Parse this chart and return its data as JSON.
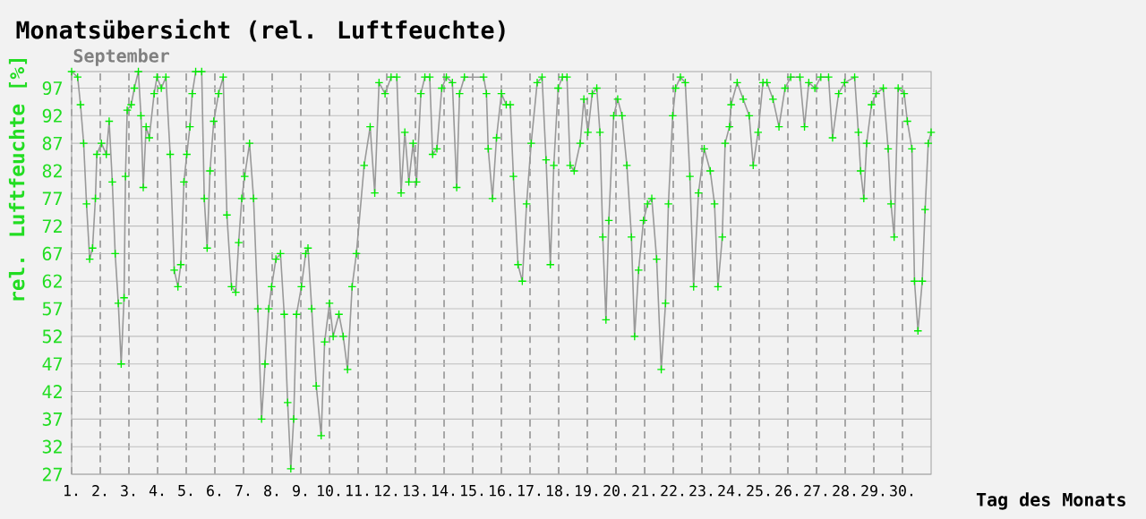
{
  "chart_data": {
    "type": "line",
    "title": "Monatsübersicht (rel. Luftfeuchte)",
    "subtitle": "September",
    "xlabel": "Tag des Monats",
    "ylabel": "rel. Luftfeuchte [%]",
    "xlim": [
      1,
      31
    ],
    "ylim": [
      27,
      100
    ],
    "xticks": [
      {
        "value": 1,
        "label": "1."
      },
      {
        "value": 2,
        "label": "2."
      },
      {
        "value": 3,
        "label": "3."
      },
      {
        "value": 4,
        "label": "4."
      },
      {
        "value": 5,
        "label": "5."
      },
      {
        "value": 6,
        "label": "6."
      },
      {
        "value": 7,
        "label": "7."
      },
      {
        "value": 8,
        "label": "8."
      },
      {
        "value": 9,
        "label": "9."
      },
      {
        "value": 10,
        "label": "10."
      },
      {
        "value": 11,
        "label": "11."
      },
      {
        "value": 12,
        "label": "12."
      },
      {
        "value": 13,
        "label": "13."
      },
      {
        "value": 14,
        "label": "14."
      },
      {
        "value": 15,
        "label": "15."
      },
      {
        "value": 16,
        "label": "16."
      },
      {
        "value": 17,
        "label": "17."
      },
      {
        "value": 18,
        "label": "18."
      },
      {
        "value": 19,
        "label": "19."
      },
      {
        "value": 20,
        "label": "20."
      },
      {
        "value": 21,
        "label": "21."
      },
      {
        "value": 22,
        "label": "22."
      },
      {
        "value": 23,
        "label": "23."
      },
      {
        "value": 24,
        "label": "24."
      },
      {
        "value": 25,
        "label": "25."
      },
      {
        "value": 26,
        "label": "26."
      },
      {
        "value": 27,
        "label": "27."
      },
      {
        "value": 28,
        "label": "28."
      },
      {
        "value": 29,
        "label": "29."
      },
      {
        "value": 30,
        "label": "30."
      }
    ],
    "yticks": [
      27,
      32,
      37,
      42,
      47,
      52,
      57,
      62,
      67,
      72,
      77,
      82,
      87,
      92,
      97
    ],
    "grid": true,
    "marker": "cross",
    "line_style": "solid",
    "series": [
      {
        "color": "#999999",
        "x": [
          1.0,
          1.21,
          1.31,
          1.42,
          1.52,
          1.63,
          1.73,
          1.83,
          1.88,
          2.04,
          2.21,
          2.31,
          2.42,
          2.52,
          2.63,
          2.73,
          2.83,
          2.88,
          2.94,
          3.08,
          3.19,
          3.33,
          3.42,
          3.5,
          3.6,
          3.71,
          3.88,
          3.98,
          4.13,
          4.29,
          4.44,
          4.58,
          4.71,
          4.81,
          4.92,
          5.02,
          5.13,
          5.21,
          5.33,
          5.54,
          5.63,
          5.73,
          5.83,
          5.96,
          6.13,
          6.29,
          6.42,
          6.58,
          6.73,
          6.83,
          6.94,
          7.04,
          7.21,
          7.35,
          7.5,
          7.63,
          7.75,
          7.88,
          7.98,
          8.13,
          8.29,
          8.42,
          8.54,
          8.65,
          8.75,
          8.85,
          9.02,
          9.17,
          9.25,
          9.38,
          9.54,
          9.71,
          9.83,
          10.0,
          10.13,
          10.33,
          10.48,
          10.63,
          10.79,
          10.94,
          11.21,
          11.42,
          11.58,
          11.73,
          11.94,
          12.15,
          12.35,
          12.5,
          12.63,
          12.77,
          12.92,
          13.04,
          13.19,
          13.33,
          13.5,
          13.6,
          13.75,
          13.92,
          14.08,
          14.29,
          14.44,
          14.54,
          14.71,
          15.38,
          15.48,
          15.54,
          15.69,
          15.83,
          16.0,
          16.17,
          16.31,
          16.42,
          16.58,
          16.73,
          16.88,
          17.04,
          17.25,
          17.42,
          17.56,
          17.71,
          17.83,
          17.98,
          18.13,
          18.29,
          18.4,
          18.54,
          18.75,
          18.88,
          19.02,
          19.17,
          19.33,
          19.44,
          19.54,
          19.65,
          19.75,
          19.92,
          20.06,
          20.21,
          20.38,
          20.54,
          20.65,
          20.79,
          20.96,
          21.1,
          21.25,
          21.42,
          21.58,
          21.73,
          21.83,
          21.98,
          22.08,
          22.25,
          22.42,
          22.58,
          22.71,
          22.88,
          23.08,
          23.29,
          23.44,
          23.56,
          23.71,
          23.81,
          23.96,
          24.02,
          24.23,
          24.44,
          24.65,
          24.79,
          24.96,
          25.13,
          25.27,
          25.48,
          25.69,
          25.9,
          26.1,
          26.42,
          26.58,
          26.73,
          26.94,
          27.15,
          27.42,
          27.56,
          27.77,
          27.98,
          28.33,
          28.46,
          28.54,
          28.65,
          28.75,
          28.92,
          29.08,
          29.33,
          29.5,
          29.6,
          29.71,
          29.85,
          30.06,
          30.17,
          30.33,
          30.42,
          30.54,
          30.69,
          30.79,
          30.9,
          31.0
        ],
        "values": [
          100,
          99,
          94,
          87,
          76,
          66,
          68,
          77,
          85,
          87,
          85,
          91,
          80,
          67,
          58,
          47,
          59,
          81,
          93,
          94,
          97,
          100,
          92,
          79,
          90,
          88,
          96,
          99,
          97,
          99,
          85,
          64,
          61,
          65,
          80,
          85,
          90,
          96,
          100,
          100,
          77,
          68,
          82,
          91,
          96,
          99,
          74,
          61,
          60,
          69,
          77,
          81,
          87,
          77,
          57,
          37,
          47,
          57,
          61,
          66,
          67,
          56,
          40,
          28,
          37,
          56,
          61,
          67,
          68,
          57,
          43,
          34,
          51,
          58,
          52,
          56,
          52,
          46,
          61,
          67,
          83,
          90,
          78,
          98,
          96,
          99,
          99,
          78,
          89,
          80,
          87,
          80,
          96,
          99,
          99,
          85,
          86,
          97,
          99,
          98,
          79,
          96,
          99,
          99,
          96,
          86,
          77,
          88,
          96,
          94,
          94,
          81,
          65,
          62,
          76,
          87,
          98,
          99,
          84,
          65,
          83,
          97,
          99,
          99,
          83,
          82,
          87,
          95,
          89,
          96,
          97,
          89,
          70,
          55,
          73,
          92,
          95,
          92,
          83,
          70,
          52,
          64,
          73,
          76,
          77,
          66,
          46,
          58,
          76,
          92,
          97,
          99,
          98,
          81,
          61,
          78,
          86,
          82,
          76,
          61,
          70,
          87,
          90,
          94,
          98,
          95,
          92,
          83,
          89,
          98,
          98,
          95,
          90,
          97,
          99,
          99,
          90,
          98,
          97,
          99,
          99,
          88,
          96,
          98,
          99,
          89,
          82,
          77,
          87,
          94,
          96,
          97,
          86,
          76,
          70,
          97,
          96,
          91,
          86,
          62,
          53,
          62,
          75,
          87,
          89
        ]
      }
    ]
  }
}
